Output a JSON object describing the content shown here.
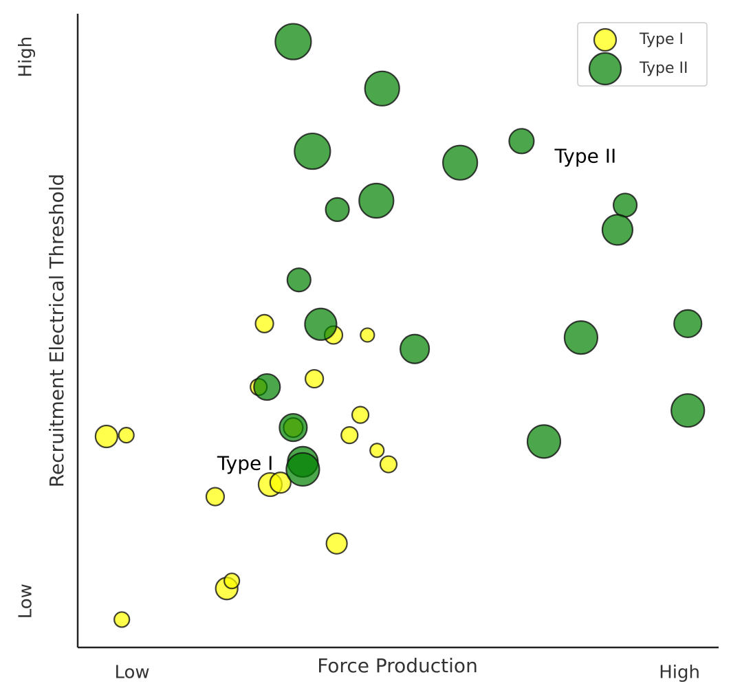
{
  "chart_data": {
    "type": "scatter",
    "xlabel": "Force Production",
    "ylabel": "Recruitment Electrical Threshold",
    "xlim": [
      0,
      10
    ],
    "ylim": [
      0,
      10
    ],
    "xticks": [
      {
        "value": 0.85,
        "label": "Low"
      },
      {
        "value": 9.41,
        "label": "High"
      }
    ],
    "yticks": [
      {
        "value": 0.73,
        "label": "Low"
      },
      {
        "value": 9.32,
        "label": "High"
      }
    ],
    "legend": "upper right",
    "series": [
      {
        "name": "Type I",
        "color": "#ffff00",
        "x": [
          0.45,
          0.76,
          0.69,
          2.15,
          2.33,
          2.41,
          2.83,
          2.92,
          3.01,
          3.17,
          3.7,
          4.0,
          4.05,
          4.25,
          4.42,
          4.53,
          4.68,
          4.86,
          3.37
        ],
        "values": [
          3.33,
          3.35,
          0.44,
          2.38,
          0.93,
          1.05,
          4.11,
          5.11,
          2.57,
          2.6,
          4.24,
          4.93,
          1.64,
          3.35,
          3.67,
          4.93,
          3.11,
          2.89,
          3.47
        ],
        "sizes": [
          16,
          11,
          11,
          13,
          16,
          11,
          12,
          13,
          17,
          15,
          13,
          13,
          15,
          12,
          12,
          10,
          10,
          12,
          14
        ]
      },
      {
        "name": "Type II",
        "color": "#008000",
        "x": [
          3.37,
          4.76,
          3.67,
          5.98,
          6.94,
          4.67,
          4.06,
          8.56,
          8.44,
          3.46,
          3.8,
          5.27,
          7.87,
          9.54,
          2.96,
          3.37,
          3.52,
          3.52,
          7.29,
          9.54
        ],
        "values": [
          9.56,
          8.82,
          7.83,
          7.65,
          7.99,
          7.05,
          6.91,
          6.98,
          6.59,
          5.8,
          5.1,
          4.71,
          4.89,
          5.11,
          4.11,
          3.47,
          2.93,
          2.81,
          3.25,
          3.74
        ],
        "sizes": [
          26,
          25,
          26,
          25,
          18,
          25,
          17,
          17,
          22,
          17,
          23,
          21,
          24,
          20,
          19,
          20,
          22,
          24,
          24,
          24
        ]
      }
    ],
    "annotations": [
      {
        "text": "Type I",
        "x": 2.62,
        "y": 2.89
      },
      {
        "text": "Type II",
        "x": 7.94,
        "y": 7.74
      }
    ]
  }
}
